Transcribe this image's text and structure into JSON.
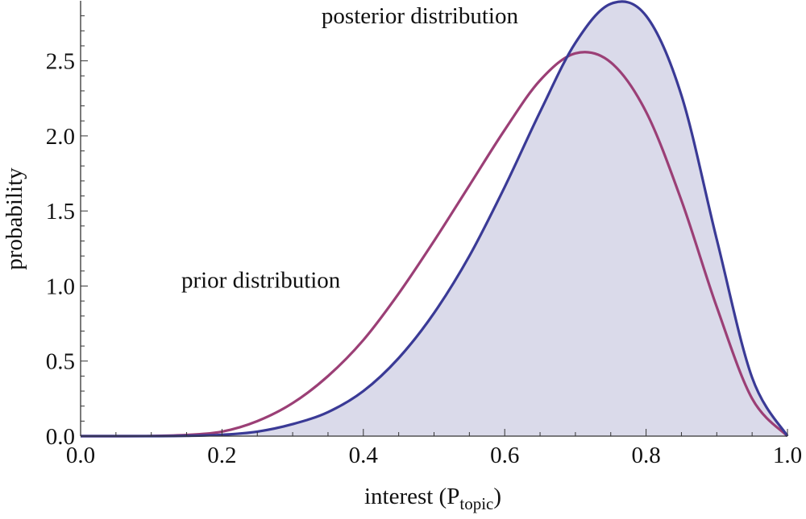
{
  "chart_data": {
    "type": "area",
    "title": "",
    "xlabel": "interest  (P",
    "xlabel_sub": "topic",
    "xlabel_close": ")",
    "ylabel": "probability",
    "xlim": [
      0.0,
      1.0
    ],
    "ylim": [
      0.0,
      2.9
    ],
    "x_ticks": [
      {
        "value": 0.0,
        "label": "0.0"
      },
      {
        "value": 0.2,
        "label": "0.2"
      },
      {
        "value": 0.4,
        "label": "0.4"
      },
      {
        "value": 0.6,
        "label": "0.6"
      },
      {
        "value": 0.8,
        "label": "0.8"
      },
      {
        "value": 1.0,
        "label": "1.0"
      }
    ],
    "y_ticks": [
      {
        "value": 0.0,
        "label": "0.0"
      },
      {
        "value": 0.5,
        "label": "0.5"
      },
      {
        "value": 1.0,
        "label": "1.0"
      },
      {
        "value": 1.5,
        "label": "1.5"
      },
      {
        "value": 2.0,
        "label": "2.0"
      },
      {
        "value": 2.5,
        "label": "2.5"
      }
    ],
    "grid": false,
    "colors": {
      "posterior": "#3a3a96",
      "posterior_fill": "#dadaea",
      "prior": "#9b3f76",
      "axis": "#333333"
    },
    "series": [
      {
        "name": "posterior distribution",
        "filled": true,
        "x": [
          0.0,
          0.05,
          0.1,
          0.15,
          0.2,
          0.25,
          0.3,
          0.35,
          0.4,
          0.45,
          0.5,
          0.55,
          0.6,
          0.65,
          0.7,
          0.75,
          0.8,
          0.85,
          0.9,
          0.95,
          1.0
        ],
        "y": [
          0.0,
          0.0,
          0.0,
          0.002,
          0.009,
          0.03,
          0.08,
          0.16,
          0.3,
          0.52,
          0.82,
          1.2,
          1.66,
          2.16,
          2.62,
          2.88,
          2.8,
          2.27,
          1.31,
          0.39,
          0.0
        ]
      },
      {
        "name": "prior distribution",
        "filled": false,
        "x": [
          0.0,
          0.05,
          0.1,
          0.15,
          0.2,
          0.25,
          0.3,
          0.35,
          0.4,
          0.45,
          0.5,
          0.55,
          0.6,
          0.65,
          0.7,
          0.75,
          0.8,
          0.85,
          0.9,
          0.95,
          1.0
        ],
        "y": [
          0.0,
          0.0,
          0.001,
          0.008,
          0.03,
          0.1,
          0.22,
          0.4,
          0.64,
          0.95,
          1.3,
          1.67,
          2.04,
          2.37,
          2.55,
          2.49,
          2.16,
          1.57,
          0.86,
          0.25,
          0.0
        ]
      }
    ],
    "annotations": [
      {
        "text": "posterior distribution",
        "x": 0.48,
        "y": 2.75
      },
      {
        "text": "prior distribution",
        "x": 0.255,
        "y": 0.99
      }
    ]
  }
}
